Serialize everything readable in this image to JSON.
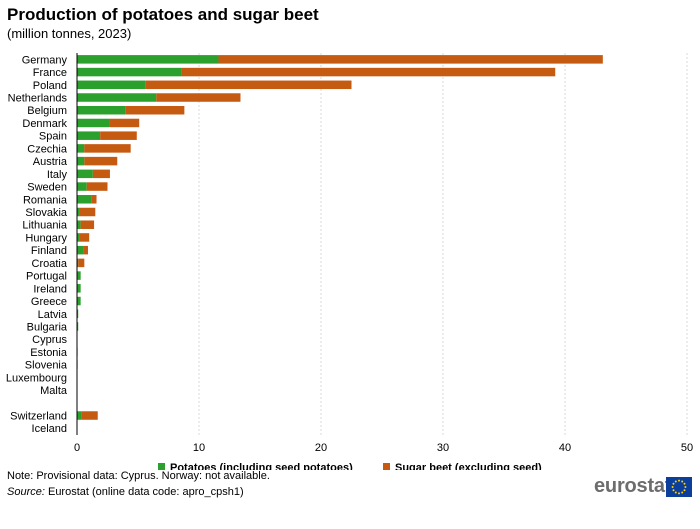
{
  "title": "Production of potatoes and sugar beet",
  "subtitle": "(million tonnes, 2023)",
  "note": "Note: Provisional data: Cyprus. Norway: not available.",
  "source_label": "Source:",
  "source_text": " Eurostat (online data code: apro_cpsh1)",
  "logo_text": "eurostat",
  "chart_data": {
    "type": "bar",
    "orientation": "horizontal",
    "stacked": true,
    "categories": [
      "Germany",
      "France",
      "Poland",
      "Netherlands",
      "Belgium",
      "Denmark",
      "Spain",
      "Czechia",
      "Austria",
      "Italy",
      "Sweden",
      "Romania",
      "Slovakia",
      "Lithuania",
      "Hungary",
      "Finland",
      "Croatia",
      "Portugal",
      "Ireland",
      "Greece",
      "Latvia",
      "Bulgaria",
      "Cyprus",
      "Estonia",
      "Slovenia",
      "Luxembourg",
      "Malta",
      "",
      "Switzerland",
      "Iceland"
    ],
    "series": [
      {
        "name": "Potatoes (including seed potatoes)",
        "color": "#2ca02c",
        "values": [
          11.6,
          8.6,
          5.6,
          6.5,
          4.0,
          2.7,
          1.9,
          0.6,
          0.6,
          1.3,
          0.8,
          1.2,
          0.2,
          0.3,
          0.2,
          0.5,
          0.1,
          0.3,
          0.3,
          0.3,
          0.1,
          0.1,
          0.02,
          0.05,
          0.05,
          0.02,
          0.0,
          null,
          0.4,
          0.0
        ]
      },
      {
        "name": "Sugar beet (excluding seed)",
        "color": "#c55a11",
        "values": [
          31.5,
          30.6,
          16.9,
          6.9,
          4.8,
          2.4,
          3.0,
          3.8,
          2.7,
          1.4,
          1.7,
          0.4,
          1.3,
          1.1,
          0.8,
          0.4,
          0.5,
          0.0,
          0.0,
          0.0,
          0.0,
          0.0,
          0.0,
          0.0,
          0.0,
          0.0,
          0.0,
          null,
          1.3,
          0.0
        ]
      }
    ],
    "xlim": [
      0,
      50
    ],
    "xticks": [
      0,
      10,
      20,
      30,
      40,
      50
    ],
    "grid": true,
    "legend_position": "bottom"
  }
}
